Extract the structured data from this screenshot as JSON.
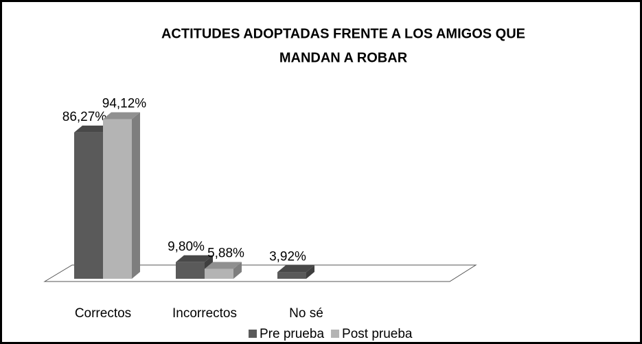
{
  "chart_data": {
    "type": "bar3d",
    "title": [
      "ACTITUDES ADOPTADAS FRENTE A LOS AMIGOS QUE",
      "MANDAN A ROBAR"
    ],
    "categories": [
      "Correctos",
      "Incorrectos",
      "No sé"
    ],
    "series": [
      {
        "name": "Pre prueba",
        "color": "#5a5a5a",
        "values": [
          86.27,
          9.8,
          3.92
        ],
        "value_labels": [
          "86,27%",
          "9,80%",
          "3,92%"
        ]
      },
      {
        "name": "Post prueba",
        "color": "#b4b4b4",
        "values": [
          94.12,
          5.88,
          null
        ],
        "value_labels": [
          "94,12%",
          "5,88%",
          null
        ]
      }
    ],
    "legend": "bottom"
  }
}
